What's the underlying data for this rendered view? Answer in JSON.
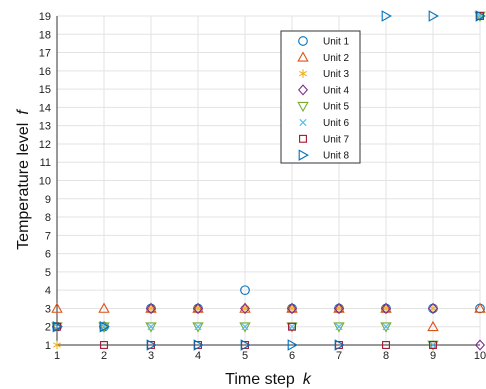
{
  "chart_data": {
    "type": "scatter",
    "xlabel": "Time step",
    "xlabel_var": "k",
    "ylabel": "Temperature level",
    "ylabel_var": "f",
    "xlim": [
      1,
      10
    ],
    "ylim": [
      1,
      19
    ],
    "xticks": [
      1,
      2,
      3,
      4,
      5,
      6,
      7,
      8,
      9,
      10
    ],
    "yticks": [
      1,
      2,
      3,
      4,
      5,
      6,
      7,
      8,
      9,
      10,
      11,
      12,
      13,
      14,
      15,
      16,
      17,
      18,
      19
    ],
    "grid": true,
    "legend_position": "top-center",
    "series": [
      {
        "name": "Unit 1",
        "marker": "circle",
        "color": "#0072BD",
        "x": [
          1,
          2,
          3,
          4,
          5,
          6,
          7,
          8,
          9,
          10
        ],
        "y": [
          2,
          2,
          3,
          3,
          4,
          3,
          3,
          3,
          3,
          3
        ]
      },
      {
        "name": "Unit 2",
        "marker": "triangle-up",
        "color": "#D95319",
        "x": [
          1,
          2,
          3,
          4,
          5,
          6,
          7,
          8,
          9,
          10
        ],
        "y": [
          3,
          3,
          3,
          3,
          3,
          3,
          3,
          3,
          2,
          3
        ]
      },
      {
        "name": "Unit 3",
        "marker": "asterisk",
        "color": "#EDB120",
        "x": [
          1,
          2,
          3,
          4,
          5,
          6,
          7,
          8,
          9,
          10
        ],
        "y": [
          1,
          2,
          3,
          3,
          3,
          3,
          3,
          3,
          3,
          19
        ]
      },
      {
        "name": "Unit 4",
        "marker": "diamond",
        "color": "#7E2F8E",
        "x": [
          1,
          2,
          3,
          4,
          5,
          6,
          7,
          8,
          9,
          10
        ],
        "y": [
          2,
          2,
          3,
          3,
          3,
          3,
          3,
          3,
          3,
          1
        ]
      },
      {
        "name": "Unit 5",
        "marker": "triangle-down",
        "color": "#77AC30",
        "x": [
          1,
          2,
          3,
          4,
          5,
          6,
          7,
          8,
          9,
          10
        ],
        "y": [
          2,
          2,
          2,
          2,
          2,
          2,
          2,
          2,
          1,
          19
        ]
      },
      {
        "name": "Unit 6",
        "marker": "x",
        "color": "#4DBEEE",
        "x": [
          1,
          2,
          3,
          4,
          5,
          6,
          7,
          8,
          9,
          10
        ],
        "y": [
          2,
          2,
          2,
          2,
          2,
          2,
          2,
          2,
          1,
          19
        ]
      },
      {
        "name": "Unit 7",
        "marker": "square",
        "color": "#A2142F",
        "x": [
          1,
          2,
          3,
          4,
          5,
          6,
          7,
          8,
          9,
          10
        ],
        "y": [
          2,
          1,
          1,
          1,
          1,
          2,
          1,
          1,
          1,
          19
        ]
      },
      {
        "name": "Unit 8",
        "marker": "triangle-right",
        "color": "#0072BD",
        "x": [
          1,
          2,
          3,
          4,
          5,
          6,
          7,
          8,
          9,
          10
        ],
        "y": [
          2,
          2,
          1,
          1,
          1,
          1,
          1,
          19,
          19,
          19
        ]
      }
    ]
  }
}
